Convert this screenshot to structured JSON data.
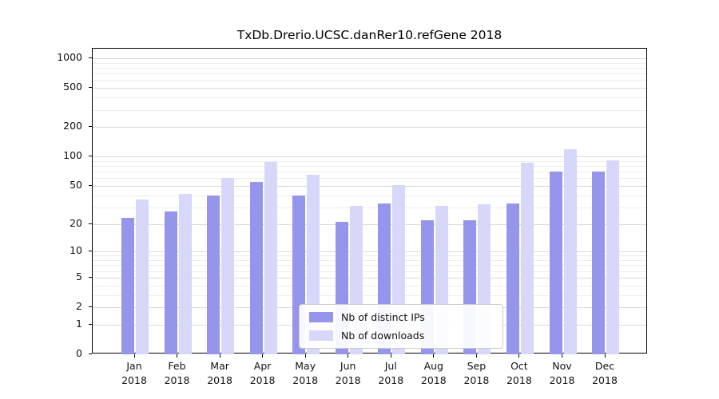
{
  "chart_data": {
    "type": "bar",
    "title": "TxDb.Drerio.UCSC.danRer10.refGene 2018",
    "y_scale": "log10(value+1)",
    "ylim": [
      0,
      1000
    ],
    "grid": true,
    "legend_position": "inside-bottom-center",
    "yticks": [
      0,
      1,
      2,
      5,
      10,
      20,
      50,
      100,
      200,
      500,
      1000
    ],
    "x_categories_line1": [
      "Jan",
      "Feb",
      "Mar",
      "Apr",
      "May",
      "Jun",
      "Jul",
      "Aug",
      "Sep",
      "Oct",
      "Nov",
      "Dec"
    ],
    "x_categories_line2": "2018",
    "series": [
      {
        "name": "Nb of distinct IPs",
        "color": "#9595ec",
        "values": [
          23,
          27,
          40,
          55,
          40,
          21,
          33,
          22,
          22,
          33,
          70,
          70
        ]
      },
      {
        "name": "Nb of downloads",
        "color": "#d7d7f9",
        "values": [
          36,
          41,
          60,
          88,
          65,
          31,
          51,
          31,
          32,
          86,
          118,
          92
        ]
      }
    ]
  }
}
